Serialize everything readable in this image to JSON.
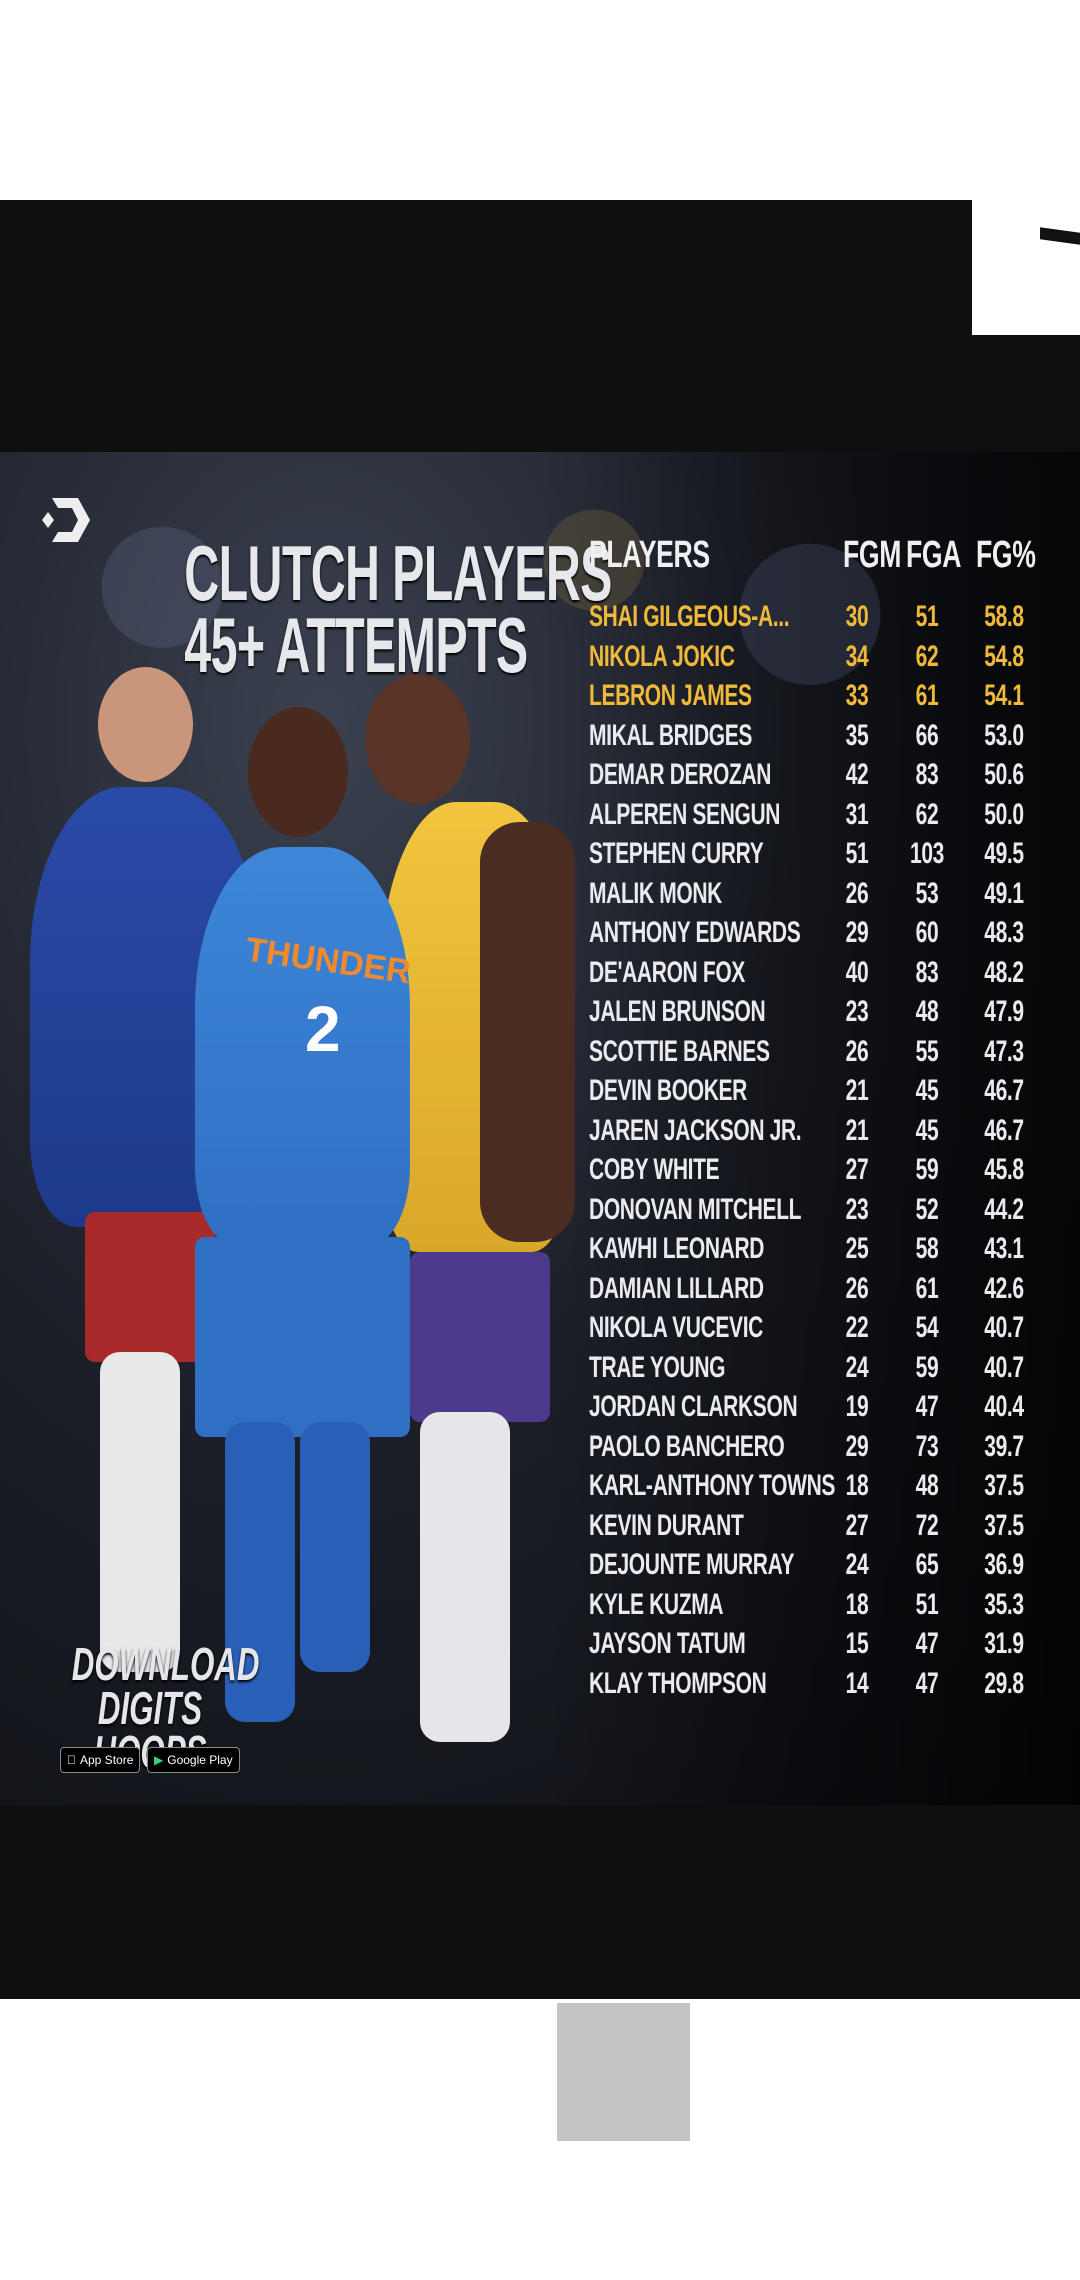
{
  "poster": {
    "title_line1": "CLUTCH PLAYERS",
    "title_line2": "45+ ATTEMPTS",
    "cta_line1": "DOWNLOAD",
    "cta_line2": "DIGITS HOOPS",
    "app_store": "App Store",
    "google_play": "Google Play",
    "jersey_text": "THUNDER",
    "jersey_number": "2",
    "highlight_color": "#f0b93a"
  },
  "table": {
    "headers": [
      "PLAYERS",
      "FGM",
      "FGA",
      "FG%"
    ],
    "rows": [
      [
        "SHAI GILGEOUS-A...",
        "30",
        "51",
        "58.8"
      ],
      [
        "NIKOLA JOKIC",
        "34",
        "62",
        "54.8"
      ],
      [
        "LEBRON JAMES",
        "33",
        "61",
        "54.1"
      ],
      [
        "MIKAL BRIDGES",
        "35",
        "66",
        "53.0"
      ],
      [
        "DEMAR DEROZAN",
        "42",
        "83",
        "50.6"
      ],
      [
        "ALPEREN SENGUN",
        "31",
        "62",
        "50.0"
      ],
      [
        "STEPHEN CURRY",
        "51",
        "103",
        "49.5"
      ],
      [
        "MALIK MONK",
        "26",
        "53",
        "49.1"
      ],
      [
        "ANTHONY EDWARDS",
        "29",
        "60",
        "48.3"
      ],
      [
        "DE'AARON FOX",
        "40",
        "83",
        "48.2"
      ],
      [
        "JALEN BRUNSON",
        "23",
        "48",
        "47.9"
      ],
      [
        "SCOTTIE BARNES",
        "26",
        "55",
        "47.3"
      ],
      [
        "DEVIN BOOKER",
        "21",
        "45",
        "46.7"
      ],
      [
        "JAREN JACKSON JR.",
        "21",
        "45",
        "46.7"
      ],
      [
        "COBY WHITE",
        "27",
        "59",
        "45.8"
      ],
      [
        "DONOVAN MITCHELL",
        "23",
        "52",
        "44.2"
      ],
      [
        "KAWHI LEONARD",
        "25",
        "58",
        "43.1"
      ],
      [
        "DAMIAN LILLARD",
        "26",
        "61",
        "42.6"
      ],
      [
        "NIKOLA VUCEVIC",
        "22",
        "54",
        "40.7"
      ],
      [
        "TRAE YOUNG",
        "24",
        "59",
        "40.7"
      ],
      [
        "JORDAN CLARKSON",
        "19",
        "47",
        "40.4"
      ],
      [
        "PAOLO BANCHERO",
        "29",
        "73",
        "39.7"
      ],
      [
        "KARL-ANTHONY TOWNS",
        "18",
        "48",
        "37.5"
      ],
      [
        "KEVIN DURANT",
        "27",
        "72",
        "37.5"
      ],
      [
        "DEJOUNTE MURRAY",
        "24",
        "65",
        "36.9"
      ],
      [
        "KYLE KUZMA",
        "18",
        "51",
        "35.3"
      ],
      [
        "JAYSON TATUM",
        "15",
        "47",
        "31.9"
      ],
      [
        "KLAY THOMPSON",
        "14",
        "47",
        "29.8"
      ]
    ],
    "highlighted_rows": 3
  }
}
